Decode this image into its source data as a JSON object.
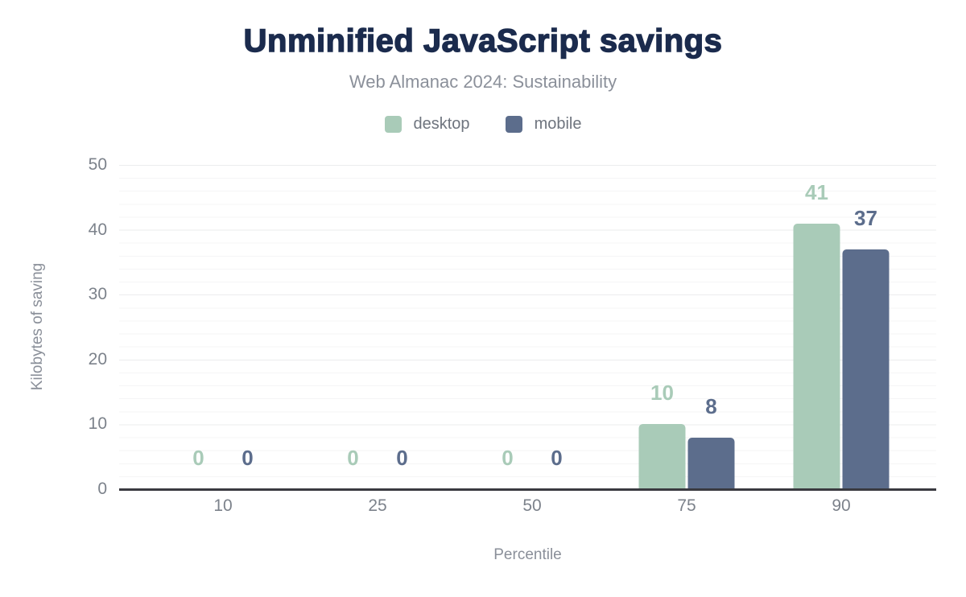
{
  "chart_data": {
    "type": "bar",
    "title": "Unminified JavaScript savings",
    "subtitle": "Web Almanac 2024: Sustainability",
    "xlabel": "Percentile",
    "ylabel": "Kilobytes of saving",
    "categories": [
      "10",
      "25",
      "50",
      "75",
      "90"
    ],
    "series": [
      {
        "name": "desktop",
        "color": "#a9cbb8",
        "values": [
          0,
          0,
          0,
          10,
          41
        ]
      },
      {
        "name": "mobile",
        "color": "#5c6d8c",
        "values": [
          0,
          0,
          0,
          8,
          37
        ]
      }
    ],
    "yticks": [
      0,
      10,
      20,
      30,
      40,
      50
    ],
    "ylim": [
      0,
      50
    ],
    "grid": "horizontal only; major lines every 10, faint minor lines every 2",
    "legend_position": "top center",
    "colors": {
      "title": "#1b2b4d",
      "subtitle_text": "#8b909a",
      "tick_text": "#7c828b",
      "axis_line": "#3a3a40"
    }
  }
}
